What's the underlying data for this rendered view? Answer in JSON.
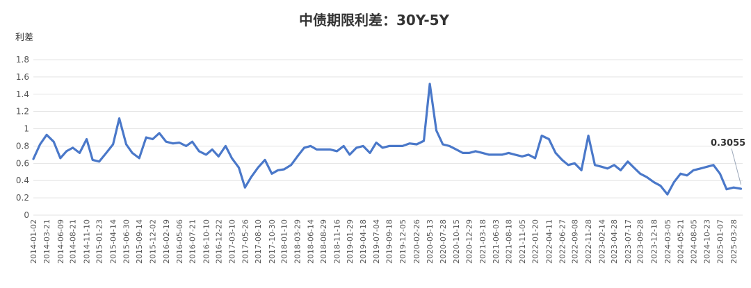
{
  "chart_data": {
    "type": "line",
    "title": "中债期限利差：30Y-5Y",
    "ylabel": "利差",
    "xlabel": "",
    "ylim": [
      0,
      1.8
    ],
    "yticks": [
      "0",
      "0.2",
      "0.4",
      "0.6",
      "0.8",
      "1",
      "1.2",
      "1.4",
      "1.6",
      "1.8"
    ],
    "grid": true,
    "legend": "none",
    "color": "#4a78c9",
    "x_tick_labels": [
      "2014-01-02",
      "2014-03-21",
      "2014-06-09",
      "2014-08-21",
      "2014-11-10",
      "2015-01-23",
      "2015-04-14",
      "2015-06-30",
      "2015-09-14",
      "2015-12-02",
      "2016-02-19",
      "2016-05-06",
      "2016-07-21",
      "2016-10-10",
      "2016-12-22",
      "2017-03-10",
      "2017-05-26",
      "2017-08-10",
      "2017-10-30",
      "2018-01-10",
      "2018-03-29",
      "2018-06-14",
      "2018-08-29",
      "2018-11-16",
      "2019-01-29",
      "2019-04-18",
      "2019-07-04",
      "2019-09-18",
      "2019-12-05",
      "2020-02-26",
      "2020-05-13",
      "2020-07-28",
      "2020-10-15",
      "2020-12-29",
      "2021-03-18",
      "2021-06-03",
      "2021-08-18",
      "2021-11-05",
      "2022-01-20",
      "2022-04-11",
      "2022-06-27",
      "2022-09-08",
      "2022-11-28",
      "2023-02-14",
      "2023-04-28",
      "2023-07-17",
      "2023-09-28",
      "2023-12-18",
      "2024-03-05",
      "2024-05-21",
      "2024-08-05",
      "2024-10-23",
      "2025-01-07",
      "2025-03-28"
    ],
    "series": [
      {
        "x": [
          "2014-01-02",
          "2014-02-10",
          "2014-03-21",
          "2014-05-01",
          "2014-06-09",
          "2014-07-15",
          "2014-08-21",
          "2014-09-30",
          "2014-11-10",
          "2014-12-15",
          "2015-01-23",
          "2015-03-05",
          "2015-04-14",
          "2015-05-20",
          "2015-06-30",
          "2015-08-05",
          "2015-09-14",
          "2015-10-25",
          "2015-12-02",
          "2016-01-10",
          "2016-02-19",
          "2016-03-30",
          "2016-05-06",
          "2016-06-15",
          "2016-07-21",
          "2016-08-30",
          "2016-10-10",
          "2016-11-15",
          "2016-12-22",
          "2017-02-01",
          "2017-03-10",
          "2017-04-20",
          "2017-05-26",
          "2017-07-01",
          "2017-08-10",
          "2017-09-20",
          "2017-10-30",
          "2017-12-05",
          "2018-01-10",
          "2018-02-20",
          "2018-03-29",
          "2018-05-08",
          "2018-06-14",
          "2018-07-20",
          "2018-08-29",
          "2018-10-08",
          "2018-11-16",
          "2018-12-25",
          "2019-01-29",
          "2019-03-10",
          "2019-04-18",
          "2019-05-28",
          "2019-07-04",
          "2019-08-10",
          "2019-09-18",
          "2019-10-28",
          "2019-12-05",
          "2020-01-15",
          "2020-02-26",
          "2020-04-08",
          "2020-05-13",
          "2020-06-20",
          "2020-07-28",
          "2020-09-05",
          "2020-10-15",
          "2020-11-22",
          "2020-12-29",
          "2021-02-05",
          "2021-03-18",
          "2021-04-25",
          "2021-06-03",
          "2021-07-10",
          "2021-08-18",
          "2021-09-25",
          "2021-11-05",
          "2021-12-12",
          "2022-01-20",
          "2022-02-28",
          "2022-04-11",
          "2022-05-20",
          "2022-06-27",
          "2022-08-02",
          "2022-09-08",
          "2022-10-18",
          "2022-11-28",
          "2023-01-05",
          "2023-02-14",
          "2023-03-20",
          "2023-04-28",
          "2023-06-05",
          "2023-07-17",
          "2023-08-22",
          "2023-09-28",
          "2023-11-05",
          "2023-12-18",
          "2024-01-25",
          "2024-03-05",
          "2024-04-12",
          "2024-05-21",
          "2024-06-28",
          "2024-08-05",
          "2024-09-15",
          "2024-10-23",
          "2024-11-30",
          "2025-01-07",
          "2025-02-15",
          "2025-03-28",
          "2025-05-10"
        ],
        "values": [
          0.65,
          0.82,
          0.93,
          0.85,
          0.66,
          0.74,
          0.78,
          0.72,
          0.88,
          0.64,
          0.62,
          0.72,
          0.82,
          1.12,
          0.82,
          0.72,
          0.66,
          0.9,
          0.88,
          0.95,
          0.85,
          0.83,
          0.84,
          0.8,
          0.85,
          0.74,
          0.7,
          0.76,
          0.68,
          0.8,
          0.66,
          0.55,
          0.32,
          0.44,
          0.55,
          0.64,
          0.48,
          0.52,
          0.53,
          0.58,
          0.68,
          0.78,
          0.8,
          0.76,
          0.76,
          0.76,
          0.74,
          0.8,
          0.7,
          0.78,
          0.8,
          0.72,
          0.84,
          0.78,
          0.8,
          0.8,
          0.8,
          0.83,
          0.82,
          0.86,
          1.52,
          0.98,
          0.82,
          0.8,
          0.76,
          0.72,
          0.72,
          0.74,
          0.72,
          0.7,
          0.7,
          0.7,
          0.72,
          0.7,
          0.68,
          0.7,
          0.66,
          0.92,
          0.88,
          0.72,
          0.64,
          0.58,
          0.6,
          0.52,
          0.92,
          0.58,
          0.56,
          0.54,
          0.58,
          0.52,
          0.62,
          0.55,
          0.48,
          0.44,
          0.38,
          0.34,
          0.24,
          0.38,
          0.48,
          0.46,
          0.52,
          0.54,
          0.56,
          0.58,
          0.48,
          0.3,
          0.32,
          0.3055
        ]
      }
    ],
    "annotation": "0.3055"
  }
}
